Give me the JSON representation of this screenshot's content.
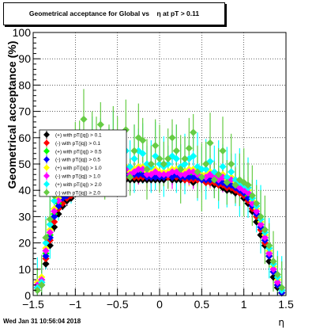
{
  "title": "Geometrical acceptance for Global vs    η at pT > 0.11",
  "footer": "Wed Jan 31 10:56:04 2018",
  "chart_data": {
    "type": "scatter",
    "xlabel": "η",
    "ylabel": "Geometrical acceptance (%)",
    "xlim": [
      -1.5,
      1.5
    ],
    "ylim": [
      0,
      100
    ],
    "x_ticks": [
      "−1.5",
      "−1",
      "−0.5",
      "0",
      "0.5",
      "1",
      "1.5"
    ],
    "y_ticks": [
      "0",
      "10",
      "20",
      "30",
      "40",
      "50",
      "60",
      "70",
      "80",
      "90",
      "100"
    ],
    "grid": true,
    "legend_position": "left",
    "legend": [
      {
        "label": "(+) with pT(|q|) > 0.1",
        "color": "#000000"
      },
      {
        "label": "(-) with pT(|q|) > 0.1",
        "color": "#ff0000"
      },
      {
        "label": "(+) with pT(|q|) > 0.5",
        "color": "#00ff00"
      },
      {
        "label": "(-) with pT(|q|) > 0.5",
        "color": "#0000ff"
      },
      {
        "label": "(+) with pT(|q|) > 1.0",
        "color": "#ffff00"
      },
      {
        "label": "(-) with pT(|q|) > 1.0",
        "color": "#ff00ff"
      },
      {
        "label": "(+) with pT(|q|) > 2.0",
        "color": "#00ffff"
      },
      {
        "label": "(-) with pT(|q|) > 2.0",
        "color": "#66cc44"
      }
    ],
    "x": [
      -1.45,
      -1.4,
      -1.35,
      -1.3,
      -1.25,
      -1.2,
      -1.15,
      -1.1,
      -1.05,
      -1.0,
      -0.95,
      -0.9,
      -0.85,
      -0.8,
      -0.75,
      -0.7,
      -0.65,
      -0.6,
      -0.55,
      -0.5,
      -0.45,
      -0.4,
      -0.35,
      -0.3,
      -0.25,
      -0.2,
      -0.15,
      -0.1,
      -0.05,
      0.0,
      0.05,
      0.1,
      0.15,
      0.2,
      0.25,
      0.3,
      0.35,
      0.4,
      0.45,
      0.5,
      0.55,
      0.6,
      0.65,
      0.7,
      0.75,
      0.8,
      0.85,
      0.9,
      0.95,
      1.0,
      1.05,
      1.1,
      1.15,
      1.2,
      1.25,
      1.3,
      1.35,
      1.4,
      1.45
    ],
    "series": [
      {
        "name": "(+) with pT(|q|) > 0.1",
        "color": "#000000",
        "err": 1.5,
        "values": [
          2,
          4,
          12,
          19,
          26,
          31,
          34,
          36,
          37,
          39,
          40,
          41,
          42,
          42,
          43,
          43,
          43,
          43,
          44,
          44,
          43,
          44,
          44,
          44,
          44,
          44,
          44,
          44,
          44,
          44,
          44,
          45,
          44,
          44,
          44,
          44,
          44,
          43,
          44,
          44,
          43,
          43,
          42,
          42,
          41,
          40,
          40,
          39,
          39,
          37,
          35,
          32,
          28,
          23,
          19,
          13,
          7,
          3,
          1
        ]
      },
      {
        "name": "(-) with pT(|q|) > 0.1",
        "color": "#ff0000",
        "err": 1.5,
        "values": [
          3,
          5,
          14,
          21,
          28,
          33,
          35,
          37,
          38,
          40,
          41,
          42,
          42,
          43,
          43,
          44,
          44,
          44,
          44,
          45,
          44,
          45,
          45,
          45,
          45,
          45,
          45,
          45,
          45,
          45,
          45,
          45,
          45,
          45,
          45,
          44,
          44,
          44,
          44,
          44,
          43,
          43,
          43,
          42,
          42,
          41,
          41,
          40,
          39,
          38,
          36,
          33,
          30,
          25,
          20,
          15,
          9,
          4,
          1
        ]
      },
      {
        "name": "(+) with pT(|q|) > 0.5",
        "color": "#00ff00",
        "err": 3,
        "values": [
          4,
          6,
          16,
          23,
          31,
          35,
          37,
          39,
          41,
          42,
          43,
          44,
          44,
          45,
          45,
          46,
          46,
          46,
          47,
          47,
          46,
          47,
          46,
          47,
          47,
          47,
          46,
          46,
          46,
          46,
          46,
          46,
          46,
          47,
          46,
          46,
          46,
          46,
          46,
          45,
          45,
          45,
          45,
          44,
          44,
          43,
          43,
          42,
          41,
          40,
          38,
          35,
          31,
          27,
          22,
          16,
          10,
          5,
          2
        ]
      },
      {
        "name": "(-) with pT(|q|) > 0.5",
        "color": "#0000ff",
        "err": 2.5,
        "values": [
          3,
          5,
          15,
          22,
          30,
          34,
          37,
          38,
          40,
          42,
          42,
          43,
          44,
          44,
          44,
          45,
          45,
          45,
          45,
          46,
          45,
          46,
          45,
          46,
          46,
          46,
          45,
          45,
          45,
          45,
          45,
          46,
          45,
          46,
          45,
          45,
          45,
          45,
          45,
          44,
          44,
          44,
          44,
          43,
          43,
          42,
          42,
          41,
          40,
          39,
          37,
          34,
          31,
          26,
          21,
          15,
          9,
          4,
          1
        ]
      },
      {
        "name": "(+) with pT(|q|) > 1.0",
        "color": "#ffff00",
        "err": 5,
        "values": [
          5,
          7,
          18,
          25,
          33,
          37,
          40,
          42,
          43,
          45,
          46,
          47,
          46,
          48,
          47,
          49,
          47,
          48,
          50,
          49,
          48,
          49,
          47,
          48,
          49,
          49,
          47,
          47,
          48,
          47,
          47,
          47,
          48,
          48,
          47,
          47,
          48,
          48,
          47,
          46,
          46,
          47,
          46,
          45,
          46,
          44,
          45,
          43,
          42,
          41,
          40,
          36,
          33,
          28,
          23,
          17,
          11,
          6,
          2
        ]
      },
      {
        "name": "(-) with pT(|q|) > 1.0",
        "color": "#ff00ff",
        "err": 5,
        "values": [
          4,
          6,
          17,
          24,
          32,
          36,
          39,
          41,
          42,
          44,
          45,
          45,
          46,
          47,
          46,
          48,
          47,
          47,
          48,
          48,
          47,
          48,
          46,
          47,
          48,
          48,
          46,
          46,
          47,
          46,
          46,
          46,
          47,
          47,
          46,
          46,
          47,
          47,
          46,
          45,
          45,
          46,
          45,
          44,
          45,
          43,
          44,
          42,
          41,
          40,
          39,
          35,
          32,
          27,
          22,
          16,
          10,
          5,
          2
        ]
      },
      {
        "name": "(+) with pT(|q|) > 2.0",
        "color": "#00ffff",
        "err": 10,
        "values": [
          3,
          5,
          20,
          27,
          36,
          40,
          44,
          46,
          48,
          50,
          52,
          53,
          50,
          55,
          52,
          56,
          50,
          54,
          57,
          53,
          51,
          55,
          49,
          52,
          55,
          54,
          50,
          49,
          53,
          50,
          49,
          50,
          53,
          52,
          49,
          50,
          52,
          53,
          49,
          48,
          48,
          51,
          47,
          46,
          49,
          45,
          47,
          44,
          43,
          42,
          41,
          37,
          34,
          29,
          24,
          18,
          12,
          7,
          2
        ]
      },
      {
        "name": "(-) with pT(|q|) > 2.0",
        "color": "#66cc44",
        "err": 10,
        "values": [
          2,
          4,
          22,
          29,
          38,
          43,
          46,
          49,
          50,
          53,
          58,
          67,
          52,
          60,
          55,
          65,
          48,
          58,
          62,
          55,
          50,
          63,
          45,
          55,
          60,
          59,
          48,
          50,
          57,
          52,
          50,
          52,
          60,
          55,
          48,
          52,
          56,
          62,
          47,
          45,
          50,
          58,
          44,
          46,
          55,
          43,
          50,
          42,
          44,
          43,
          42,
          38,
          35,
          30,
          25,
          19,
          13,
          8,
          3
        ]
      }
    ]
  }
}
